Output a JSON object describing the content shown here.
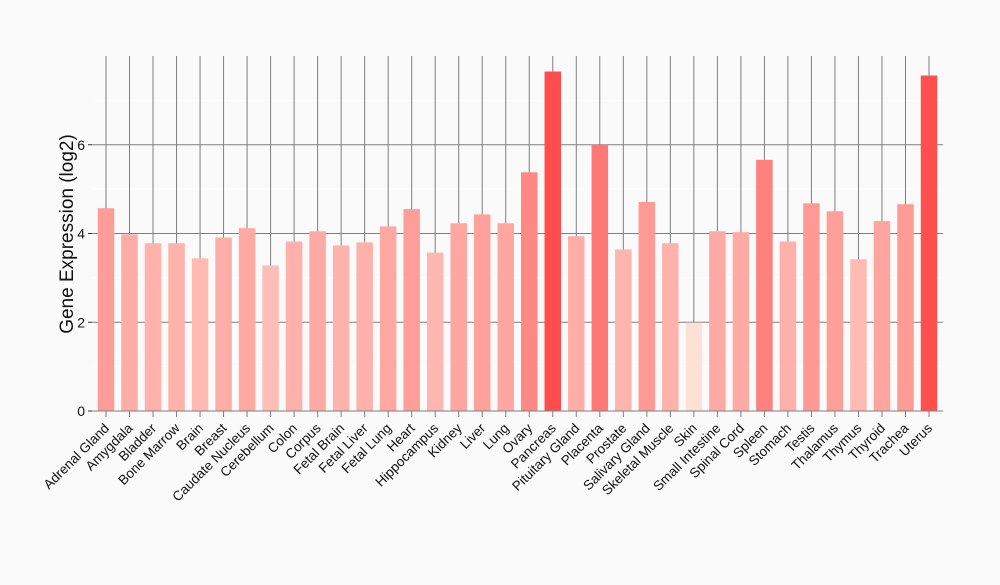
{
  "chart_data": {
    "type": "bar",
    "title": "",
    "xlabel": "",
    "ylabel": "Gene Expression (log2)",
    "ylim": [
      0,
      8
    ],
    "yticks": [
      0,
      2,
      4,
      6
    ],
    "grid": true,
    "categories": [
      "Adrenal Gland",
      "Amygdala",
      "Bladder",
      "Bone Marrow",
      "Brain",
      "Breast",
      "Caudate Nucleus",
      "Cerebellum",
      "Colon",
      "Corpus",
      "Fetal Brain",
      "Fetal Liver",
      "Fetal Lung",
      "Heart",
      "Hippocampus",
      "Kidney",
      "Liver",
      "Lung",
      "Ovary",
      "Pancreas",
      "Pituitary Gland",
      "Placenta",
      "Prostate",
      "Salivary Gland",
      "Skeletal Muscle",
      "Skin",
      "Small Intestine",
      "Spinal Cord",
      "Spleen",
      "Stomach",
      "Testis",
      "Thalamus",
      "Thymus",
      "Thyroid",
      "Trachea",
      "Uterus"
    ],
    "values": [
      4.57,
      3.98,
      3.78,
      3.78,
      3.44,
      3.91,
      4.12,
      3.28,
      3.82,
      4.05,
      3.73,
      3.8,
      4.16,
      4.55,
      3.57,
      4.23,
      4.43,
      4.23,
      5.38,
      7.65,
      3.94,
      6.0,
      3.64,
      4.71,
      3.78,
      1.99,
      4.05,
      4.03,
      5.66,
      3.82,
      4.68,
      4.5,
      3.42,
      4.28,
      4.66,
      7.56
    ],
    "color_low": "#fde0d6",
    "color_high": "#ff4d4d"
  }
}
